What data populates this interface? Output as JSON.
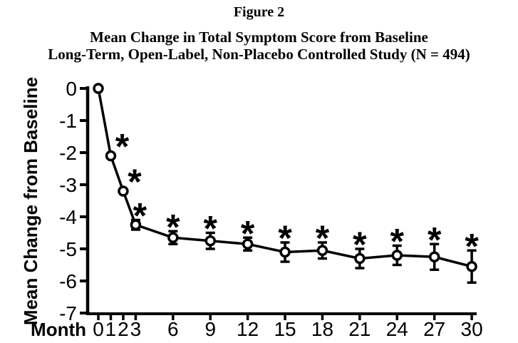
{
  "header": {
    "figure_label": "Figure 2",
    "title_line1": "Mean Change in Total Symptom Score from Baseline",
    "title_line2": "Long-Term, Open-Label, Non-Placebo Controlled Study (N = 494)"
  },
  "chart_data": {
    "type": "line",
    "title": "Mean Change in Total Symptom Score from Baseline",
    "subtitle": "Long-Term, Open-Label, Non-Placebo Controlled Study (N = 494)",
    "xlabel": "Month",
    "ylabel": "Mean Change from Baseline",
    "xlim": [
      0,
      30
    ],
    "ylim": [
      -7,
      0
    ],
    "yticks": [
      0,
      -1,
      -2,
      -3,
      -4,
      -5,
      -6,
      -7
    ],
    "xticks": [
      0,
      1,
      2,
      3,
      6,
      9,
      12,
      15,
      18,
      21,
      24,
      27,
      30
    ],
    "marker": "open-circle",
    "error_bars": true,
    "significance_symbol": "*",
    "line_color": "#000000",
    "marker_fill": "#ffffff",
    "background": "#ffffff",
    "grid": false,
    "legend": "none",
    "points": [
      {
        "month": 0,
        "value": 0.0,
        "error": 0.0,
        "significant": false
      },
      {
        "month": 1,
        "value": -2.1,
        "error": 0.0,
        "significant": true
      },
      {
        "month": 2,
        "value": -3.2,
        "error": 0.0,
        "significant": true
      },
      {
        "month": 3,
        "value": -4.25,
        "error": 0.15,
        "significant": true
      },
      {
        "month": 6,
        "value": -4.65,
        "error": 0.2,
        "significant": true
      },
      {
        "month": 9,
        "value": -4.75,
        "error": 0.25,
        "significant": true
      },
      {
        "month": 12,
        "value": -4.85,
        "error": 0.2,
        "significant": true
      },
      {
        "month": 15,
        "value": -5.1,
        "error": 0.3,
        "significant": true
      },
      {
        "month": 18,
        "value": -5.05,
        "error": 0.25,
        "significant": true
      },
      {
        "month": 21,
        "value": -5.3,
        "error": 0.3,
        "significant": true
      },
      {
        "month": 24,
        "value": -5.2,
        "error": 0.3,
        "significant": true
      },
      {
        "month": 27,
        "value": -5.25,
        "error": 0.4,
        "significant": true
      },
      {
        "month": 30,
        "value": -5.55,
        "error": 0.5,
        "significant": true
      }
    ]
  }
}
